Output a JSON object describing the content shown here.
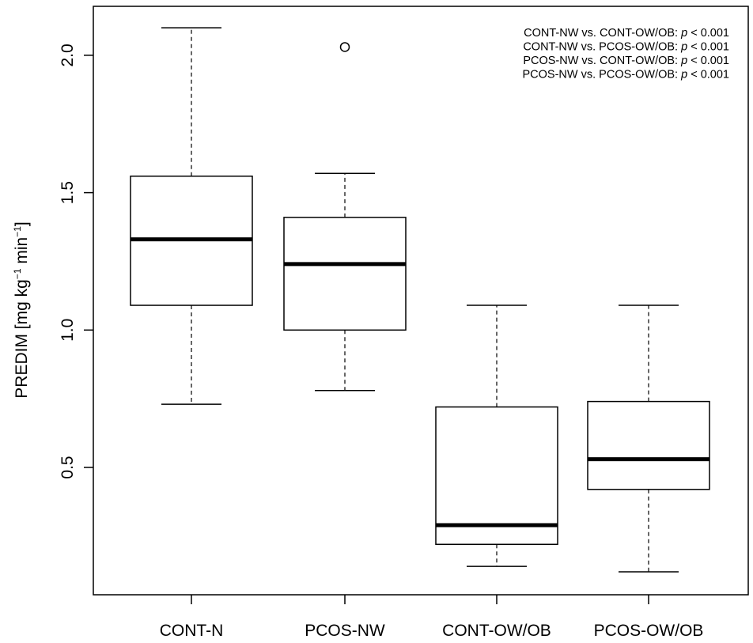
{
  "chart_data": {
    "type": "box",
    "ylabel": {
      "main": "PREDIM [mg kg",
      "sup1": "−1",
      "mid": " min",
      "sup2": "−1",
      "end": "]"
    },
    "categories": [
      "CONT-N",
      "PCOS-NW",
      "CONT-OW/OB",
      "PCOS-OW/OB"
    ],
    "ylim": [
      0.1,
      2.2
    ],
    "yticks": [
      0.5,
      1.0,
      1.5,
      2.0
    ],
    "ytick_labels": [
      "0.5",
      "1.0",
      "1.5",
      "2.0"
    ],
    "boxes": [
      {
        "name": "CONT-N",
        "whisker_low": 0.73,
        "q1": 1.09,
        "median": 1.33,
        "q3": 1.56,
        "whisker_high": 2.1,
        "outliers": []
      },
      {
        "name": "PCOS-NW",
        "whisker_low": 0.78,
        "q1": 1.0,
        "median": 1.24,
        "q3": 1.41,
        "whisker_high": 1.57,
        "outliers": [
          2.03
        ]
      },
      {
        "name": "CONT-OW/OB",
        "whisker_low": 0.14,
        "q1": 0.22,
        "median": 0.29,
        "q3": 0.72,
        "whisker_high": 1.09,
        "outliers": []
      },
      {
        "name": "PCOS-OW/OB",
        "whisker_low": 0.12,
        "q1": 0.42,
        "median": 0.53,
        "q3": 0.74,
        "whisker_high": 1.09,
        "outliers": []
      }
    ],
    "annotations": [
      {
        "text": "CONT-NW vs. CONT-OW/OB: ",
        "p": "p",
        "rest": " < 0.001"
      },
      {
        "text": "CONT-NW vs. PCOS-OW/OB: ",
        "p": "p",
        "rest": " < 0.001"
      },
      {
        "text": "PCOS-NW vs. CONT-OW/OB: ",
        "p": "p",
        "rest": " < 0.001"
      },
      {
        "text": "PCOS-NW vs. PCOS-OW/OB: ",
        "p": "p",
        "rest": " < 0.001"
      }
    ],
    "grid": false,
    "legend": "none"
  }
}
